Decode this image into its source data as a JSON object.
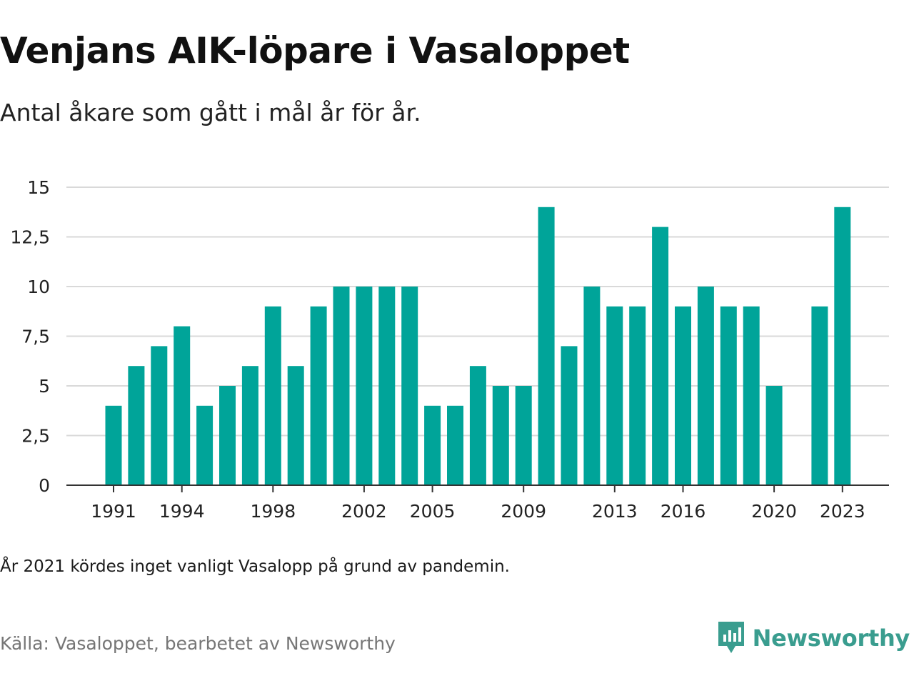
{
  "title": "Venjans AIK-löpare i Vasaloppet",
  "subtitle": "Antal åkare som gått i mål år för år.",
  "note": "År 2021 kördes inget vanligt Vasalopp på grund av pandemin.",
  "source": "Källa: Vasaloppet, bearbetet av Newsworthy",
  "brand": {
    "name": "Newsworthy",
    "icon": "newsworthy-logo-icon",
    "color": "#3a9d8f"
  },
  "colors": {
    "bar": "#00a499",
    "grid": "#d9d9d9",
    "axis": "#333333"
  },
  "chart_data": {
    "type": "bar",
    "title": "Venjans AIK-löpare i Vasaloppet",
    "subtitle": "Antal åkare som gått i mål år för år.",
    "xlabel": "",
    "ylabel": "",
    "ylim": [
      0,
      15
    ],
    "y_ticks": [
      0,
      2.5,
      5,
      7.5,
      10,
      12.5,
      15
    ],
    "y_tick_labels": [
      "0",
      "2,5",
      "5",
      "7,5",
      "10",
      "12,5",
      "15"
    ],
    "x_tick_labels": [
      1991,
      1994,
      1998,
      2002,
      2005,
      2009,
      2013,
      2016,
      2020,
      2023
    ],
    "grid": true,
    "categories": [
      1991,
      1992,
      1993,
      1994,
      1995,
      1996,
      1997,
      1998,
      1999,
      2000,
      2001,
      2002,
      2003,
      2004,
      2005,
      2006,
      2007,
      2008,
      2009,
      2010,
      2011,
      2012,
      2013,
      2014,
      2015,
      2016,
      2017,
      2018,
      2019,
      2020,
      2021,
      2022,
      2023
    ],
    "values": [
      4,
      6,
      7,
      8,
      4,
      5,
      6,
      9,
      6,
      9,
      10,
      10,
      10,
      10,
      4,
      4,
      6,
      5,
      5,
      14,
      7,
      10,
      9,
      9,
      13,
      9,
      10,
      9,
      9,
      5,
      null,
      9,
      14
    ]
  }
}
